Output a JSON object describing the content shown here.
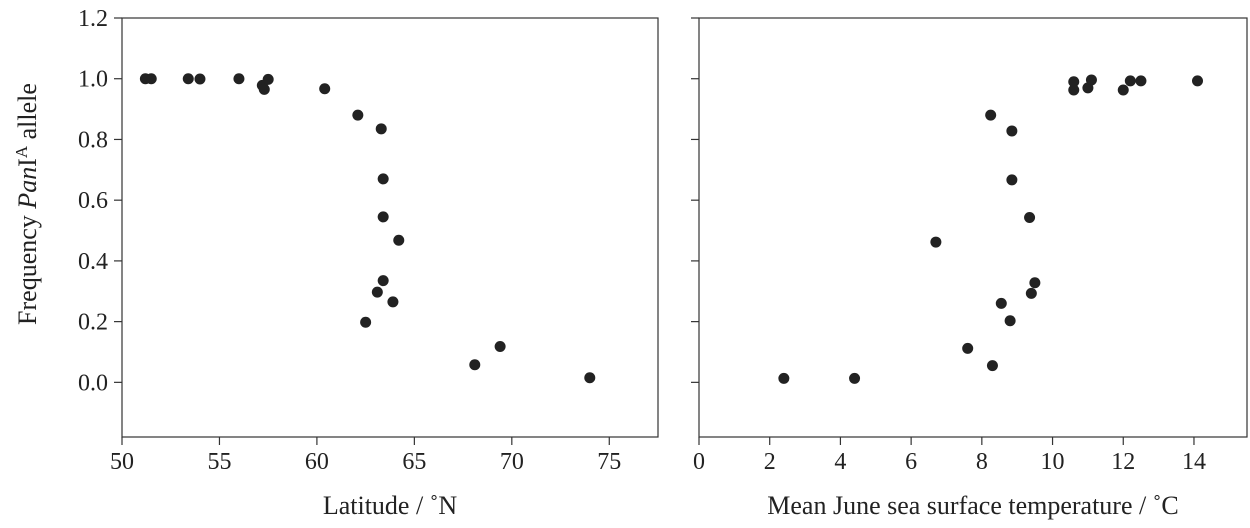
{
  "ylabel": {
    "prefix": "Frequency ",
    "italic": "Pan",
    "roman": "I",
    "sup": "A",
    "suffix": " allele"
  },
  "chart_data": [
    {
      "type": "scatter",
      "xlabel": "Latitude / ˚N",
      "xlim": [
        50,
        77.5
      ],
      "ylim": [
        -0.18,
        1.2
      ],
      "xticks": [
        50,
        55,
        60,
        65,
        70,
        75
      ],
      "yticks": [
        0.0,
        0.2,
        0.4,
        0.6,
        0.8,
        1.0,
        1.2
      ],
      "ytick_labels": [
        "0.0",
        "0.2",
        "0.4",
        "0.6",
        "0.8",
        "1.0",
        "1.2"
      ],
      "series": [
        {
          "points": [
            [
              51.2,
              1.0
            ],
            [
              51.5,
              1.0
            ],
            [
              53.4,
              1.0
            ],
            [
              54.0,
              0.999
            ],
            [
              56.0,
              1.0
            ],
            [
              57.2,
              0.978
            ],
            [
              57.3,
              0.965
            ],
            [
              57.5,
              0.998
            ],
            [
              60.4,
              0.967
            ],
            [
              62.1,
              0.88
            ],
            [
              63.3,
              0.835
            ],
            [
              63.4,
              0.67
            ],
            [
              63.4,
              0.545
            ],
            [
              64.2,
              0.468
            ],
            [
              63.4,
              0.335
            ],
            [
              63.1,
              0.297
            ],
            [
              63.9,
              0.265
            ],
            [
              62.5,
              0.198
            ],
            [
              68.1,
              0.058
            ],
            [
              69.4,
              0.118
            ],
            [
              74.0,
              0.015
            ]
          ]
        }
      ]
    },
    {
      "type": "scatter",
      "xlabel": "Mean June sea surface temperature / ˚C",
      "xlim": [
        0,
        15.5
      ],
      "ylim": [
        -0.18,
        1.2
      ],
      "xticks": [
        0,
        2,
        4,
        6,
        8,
        10,
        12,
        14
      ],
      "series": [
        {
          "points": [
            [
              2.4,
              0.013
            ],
            [
              4.4,
              0.013
            ],
            [
              6.7,
              0.462
            ],
            [
              7.6,
              0.112
            ],
            [
              8.25,
              0.88
            ],
            [
              8.3,
              0.055
            ],
            [
              8.55,
              0.26
            ],
            [
              8.8,
              0.203
            ],
            [
              8.85,
              0.828
            ],
            [
              8.85,
              0.667
            ],
            [
              9.35,
              0.543
            ],
            [
              9.4,
              0.293
            ],
            [
              9.5,
              0.328
            ],
            [
              10.6,
              0.99
            ],
            [
              10.6,
              0.963
            ],
            [
              11.0,
              0.97
            ],
            [
              11.1,
              0.996
            ],
            [
              12.0,
              0.963
            ],
            [
              12.2,
              0.993
            ],
            [
              12.5,
              0.993
            ],
            [
              14.1,
              0.993
            ]
          ]
        }
      ]
    }
  ]
}
